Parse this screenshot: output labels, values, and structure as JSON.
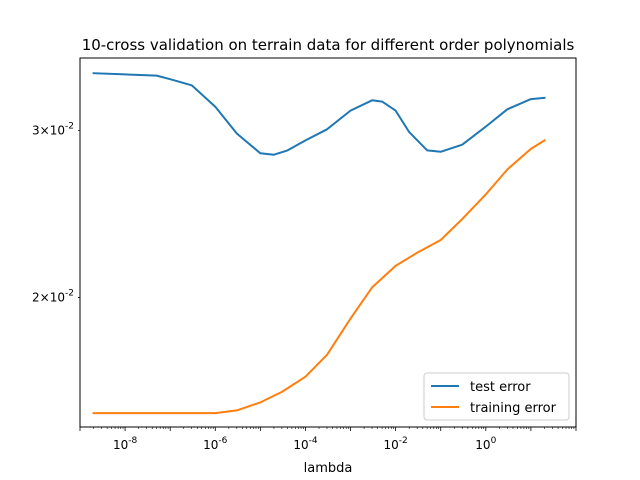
{
  "chart_data": {
    "type": "line",
    "title": "10-cross validation on terrain data for different order polynomials",
    "xlabel": "lambda",
    "ylabel": "",
    "x_scale": "log",
    "y_scale": "log",
    "xlim": [
      1e-09,
      100.0
    ],
    "ylim": [
      0.0146,
      0.0358
    ],
    "legend_position": "lower right",
    "grid": false,
    "x_ticks": [
      {
        "value": 1e-08,
        "base": "10",
        "exp": "-8"
      },
      {
        "value": 1e-06,
        "base": "10",
        "exp": "-6"
      },
      {
        "value": 0.0001,
        "base": "10",
        "exp": "-4"
      },
      {
        "value": 0.01,
        "base": "10",
        "exp": "-2"
      },
      {
        "value": 1,
        "base": "10",
        "exp": "0"
      }
    ],
    "y_ticks": [
      {
        "value": 0.03,
        "mant": "3",
        "base": "10",
        "exp": "-2"
      },
      {
        "value": 0.02,
        "mant": "2",
        "base": "10",
        "exp": "-2"
      }
    ],
    "series": [
      {
        "name": "test error",
        "color": "#1f77b4",
        "x": [
          2e-09,
          1e-08,
          5e-08,
          1e-07,
          3e-07,
          1e-06,
          3e-06,
          1e-05,
          2e-05,
          4e-05,
          0.0001,
          0.0003,
          0.001,
          0.003,
          0.005,
          0.01,
          0.02,
          0.05,
          0.1,
          0.3,
          1,
          3,
          10.0,
          20.0
        ],
        "y": [
          0.0345,
          0.0344,
          0.0343,
          0.034,
          0.0335,
          0.0318,
          0.0298,
          0.0284,
          0.0283,
          0.0286,
          0.0293,
          0.0301,
          0.0315,
          0.0323,
          0.0322,
          0.0315,
          0.0299,
          0.0286,
          0.0285,
          0.029,
          0.0303,
          0.0316,
          0.0324,
          0.0325
        ]
      },
      {
        "name": "training error",
        "color": "#ff7f0e",
        "x": [
          2e-09,
          1e-08,
          1e-07,
          1e-06,
          3e-06,
          1e-05,
          3e-05,
          0.0001,
          0.0003,
          0.001,
          0.003,
          0.01,
          0.03,
          0.1,
          0.3,
          1,
          3,
          10.0,
          20.0
        ],
        "y": [
          0.0151,
          0.0151,
          0.0151,
          0.0151,
          0.0152,
          0.0155,
          0.0159,
          0.0165,
          0.0174,
          0.019,
          0.0205,
          0.0216,
          0.0223,
          0.023,
          0.0242,
          0.0257,
          0.0273,
          0.0287,
          0.0293
        ]
      }
    ]
  }
}
